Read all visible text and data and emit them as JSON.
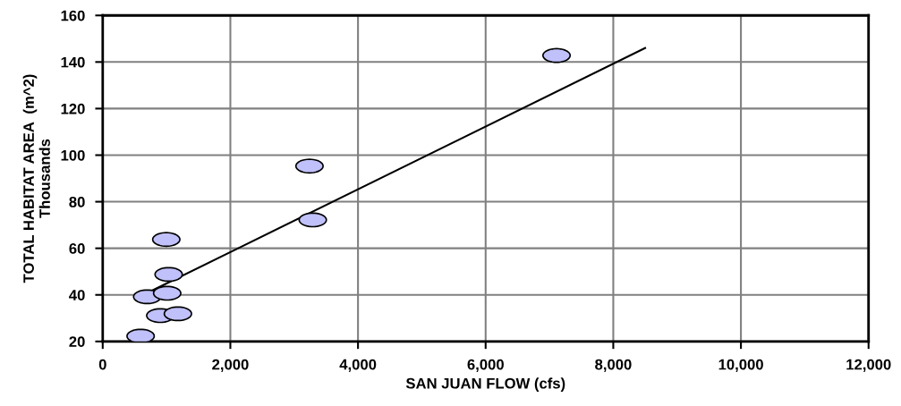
{
  "chart_data": {
    "type": "scatter",
    "xlabel": "SAN JUAN FLOW (cfs)",
    "ylabel": "TOTAL HABITAT AREA  (m^2)\nThousands",
    "series": [
      {
        "marker": "circle",
        "color": "#c0c0fa",
        "x": [
          594,
          697,
          902,
          1178,
          1010,
          1033,
          996,
          3240,
          3291,
          7111
        ],
        "values": [
          22.3,
          39.2,
          31.1,
          31.9,
          40.7,
          48.8,
          63.8,
          95.3,
          72.2,
          142.8
        ]
      },
      {
        "type": "line",
        "color": "#000000",
        "x": [
          771,
          8499
        ],
        "values": [
          41.8,
          146.0
        ]
      }
    ],
    "xlim": [
      0,
      12000
    ],
    "xticks": [
      {
        "value": 0,
        "label": "0"
      },
      {
        "value": 2000,
        "label": "2,000"
      },
      {
        "value": 4000,
        "label": "4,000"
      },
      {
        "value": 6000,
        "label": "6,000"
      },
      {
        "value": 8000,
        "label": "8,000"
      },
      {
        "value": 10000,
        "label": "10,000"
      },
      {
        "value": 12000,
        "label": "12,000"
      }
    ],
    "ylim": [
      20,
      160
    ],
    "yticks": [
      20,
      40,
      60,
      80,
      100,
      120,
      140,
      160
    ],
    "grid": true,
    "line_style": "solid"
  }
}
